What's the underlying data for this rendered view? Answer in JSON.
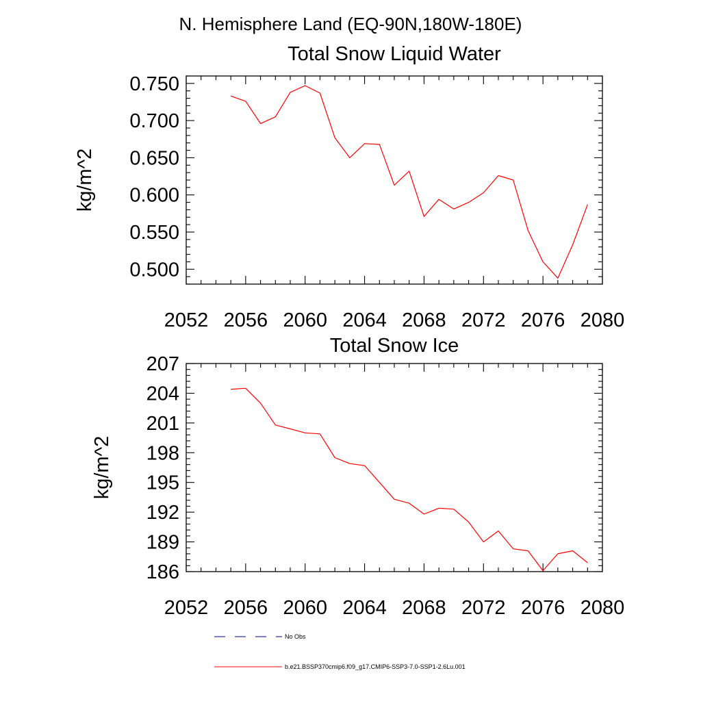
{
  "figure_title": "N. Hemisphere Land (EQ-90N,180W-180E)",
  "legend": [
    {
      "label": "No Obs",
      "color": "#00008b",
      "style": "dashed"
    },
    {
      "label": "b.e21.BSSP370cmip6.f09_g17.CMIP6-SSP3-7.0-SSP1-2.6Lu.001",
      "color": "#ff0000",
      "style": "solid"
    }
  ],
  "chart_data": [
    {
      "type": "line",
      "title": "Total Snow Liquid Water",
      "xlabel": "",
      "ylabel": "kg/m^2",
      "xlim": [
        2052,
        2080
      ],
      "ylim": [
        0.48,
        0.76
      ],
      "xticks": [
        "2052",
        "2056",
        "2060",
        "2064",
        "2068",
        "2072",
        "2076",
        "2080"
      ],
      "yticks": [
        "0.500",
        "0.550",
        "0.600",
        "0.650",
        "0.700",
        "0.750"
      ],
      "x": [
        2055,
        2056,
        2057,
        2058,
        2059,
        2060,
        2061,
        2062,
        2063,
        2064,
        2065,
        2066,
        2067,
        2068,
        2069,
        2070,
        2071,
        2072,
        2073,
        2074,
        2075,
        2076,
        2077,
        2078,
        2079
      ],
      "series": [
        {
          "color": "#ff0000",
          "values": [
            0.733,
            0.726,
            0.696,
            0.705,
            0.738,
            0.747,
            0.737,
            0.677,
            0.65,
            0.669,
            0.668,
            0.613,
            0.632,
            0.571,
            0.594,
            0.581,
            0.59,
            0.603,
            0.626,
            0.62,
            0.552,
            0.51,
            0.488,
            0.533,
            0.587
          ]
        }
      ]
    },
    {
      "type": "line",
      "title": "Total Snow Ice",
      "xlabel": "",
      "ylabel": "kg/m^2",
      "xlim": [
        2052,
        2080
      ],
      "ylim": [
        186,
        207
      ],
      "xticks": [
        "2052",
        "2056",
        "2060",
        "2064",
        "2068",
        "2072",
        "2076",
        "2080"
      ],
      "yticks": [
        "186",
        "189",
        "192",
        "195",
        "198",
        "201",
        "204",
        "207"
      ],
      "x": [
        2055,
        2056,
        2057,
        2058,
        2059,
        2060,
        2061,
        2062,
        2063,
        2064,
        2065,
        2066,
        2067,
        2068,
        2069,
        2070,
        2071,
        2072,
        2073,
        2074,
        2075,
        2076,
        2077,
        2078,
        2079
      ],
      "series": [
        {
          "color": "#ff0000",
          "values": [
            204.4,
            204.5,
            203.0,
            200.8,
            200.4,
            200.0,
            199.9,
            197.5,
            196.9,
            196.7,
            195.0,
            193.3,
            192.9,
            191.8,
            192.4,
            192.3,
            191.0,
            189.0,
            190.1,
            188.3,
            188.1,
            186.1,
            187.8,
            188.1,
            186.9
          ]
        }
      ]
    }
  ]
}
